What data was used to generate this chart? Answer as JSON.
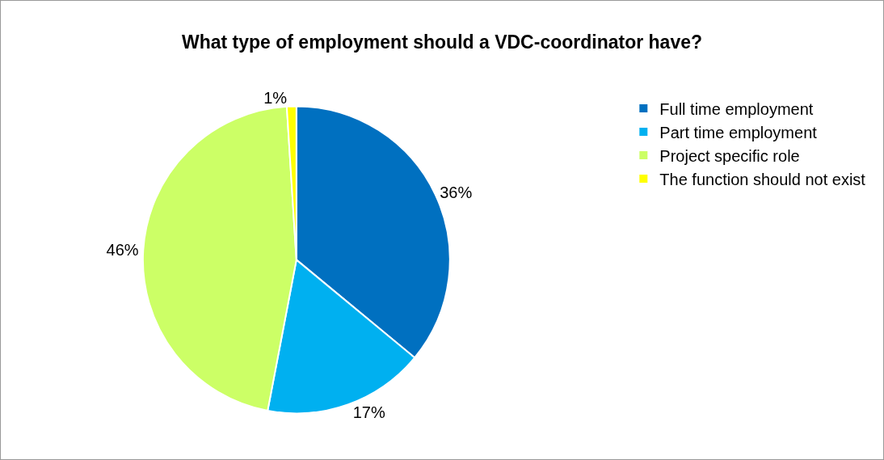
{
  "chart_data": {
    "type": "pie",
    "title": "What type of employment should a VDC-coordinator have?",
    "categories": [
      "Full time employment",
      "Part time employment",
      "Project specific role",
      "The function should not exist"
    ],
    "values": [
      36,
      17,
      46,
      1
    ],
    "value_labels": [
      "36%",
      "17%",
      "46%",
      "1%"
    ],
    "colors": [
      "#0070c0",
      "#00b0f0",
      "#ccff66",
      "#ffff00"
    ],
    "legend": "right"
  }
}
